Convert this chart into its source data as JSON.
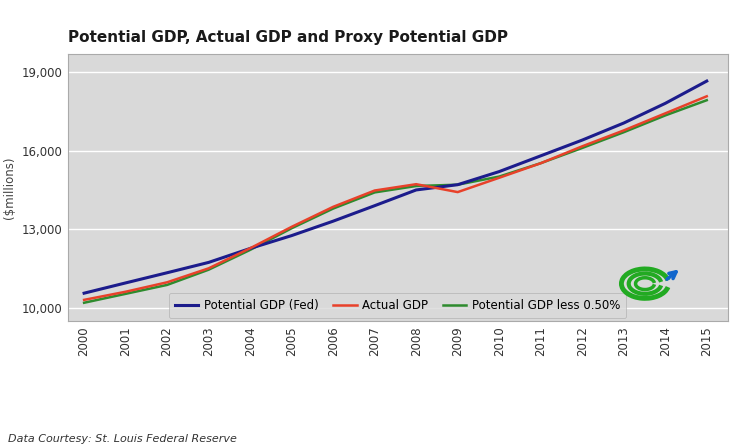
{
  "title": "Potential GDP, Actual GDP and Proxy Potential GDP",
  "ylabel": "($millions)",
  "source": "Data Courtesy: St. Louis Federal Reserve",
  "fig_bg_color": "#ffffff",
  "plot_bg_color": "#d9d9d9",
  "legend_bg_color": "#e0e0e0",
  "ylim": [
    9500,
    19700
  ],
  "yticks": [
    10000,
    13000,
    16000,
    19000
  ],
  "ytick_labels": [
    "10,000",
    "13,000",
    "16,000",
    "19,000"
  ],
  "years": [
    2000,
    2001,
    2002,
    2003,
    2004,
    2005,
    2006,
    2007,
    2008,
    2009,
    2010,
    2011,
    2012,
    2013,
    2014,
    2015
  ],
  "potential_gdp_fed": [
    10565,
    10956,
    11344,
    11738,
    12270,
    12760,
    13310,
    13900,
    14500,
    14700,
    15200,
    15800,
    16400,
    17050,
    17800,
    18650
  ],
  "actual_gdp": [
    10310,
    10620,
    10980,
    11512,
    12277,
    13094,
    13856,
    14478,
    14719,
    14418,
    14964,
    15518,
    16163,
    16768,
    17419,
    18070
  ],
  "proxy_potential_gdp": [
    10200,
    10540,
    10880,
    11460,
    12215,
    13040,
    13790,
    14406,
    14650,
    14700,
    15010,
    15520,
    16100,
    16700,
    17340,
    17920
  ],
  "line_colors": {
    "potential_gdp_fed": "#1c1c8c",
    "actual_gdp": "#e8412a",
    "proxy_potential_gdp": "#2e8b2e"
  },
  "line_widths": {
    "potential_gdp_fed": 2.2,
    "actual_gdp": 1.8,
    "proxy_potential_gdp": 1.8
  },
  "legend_labels": [
    "Potential GDP (Fed)",
    "Actual GDP",
    "Potential GDP less 0.50%"
  ]
}
